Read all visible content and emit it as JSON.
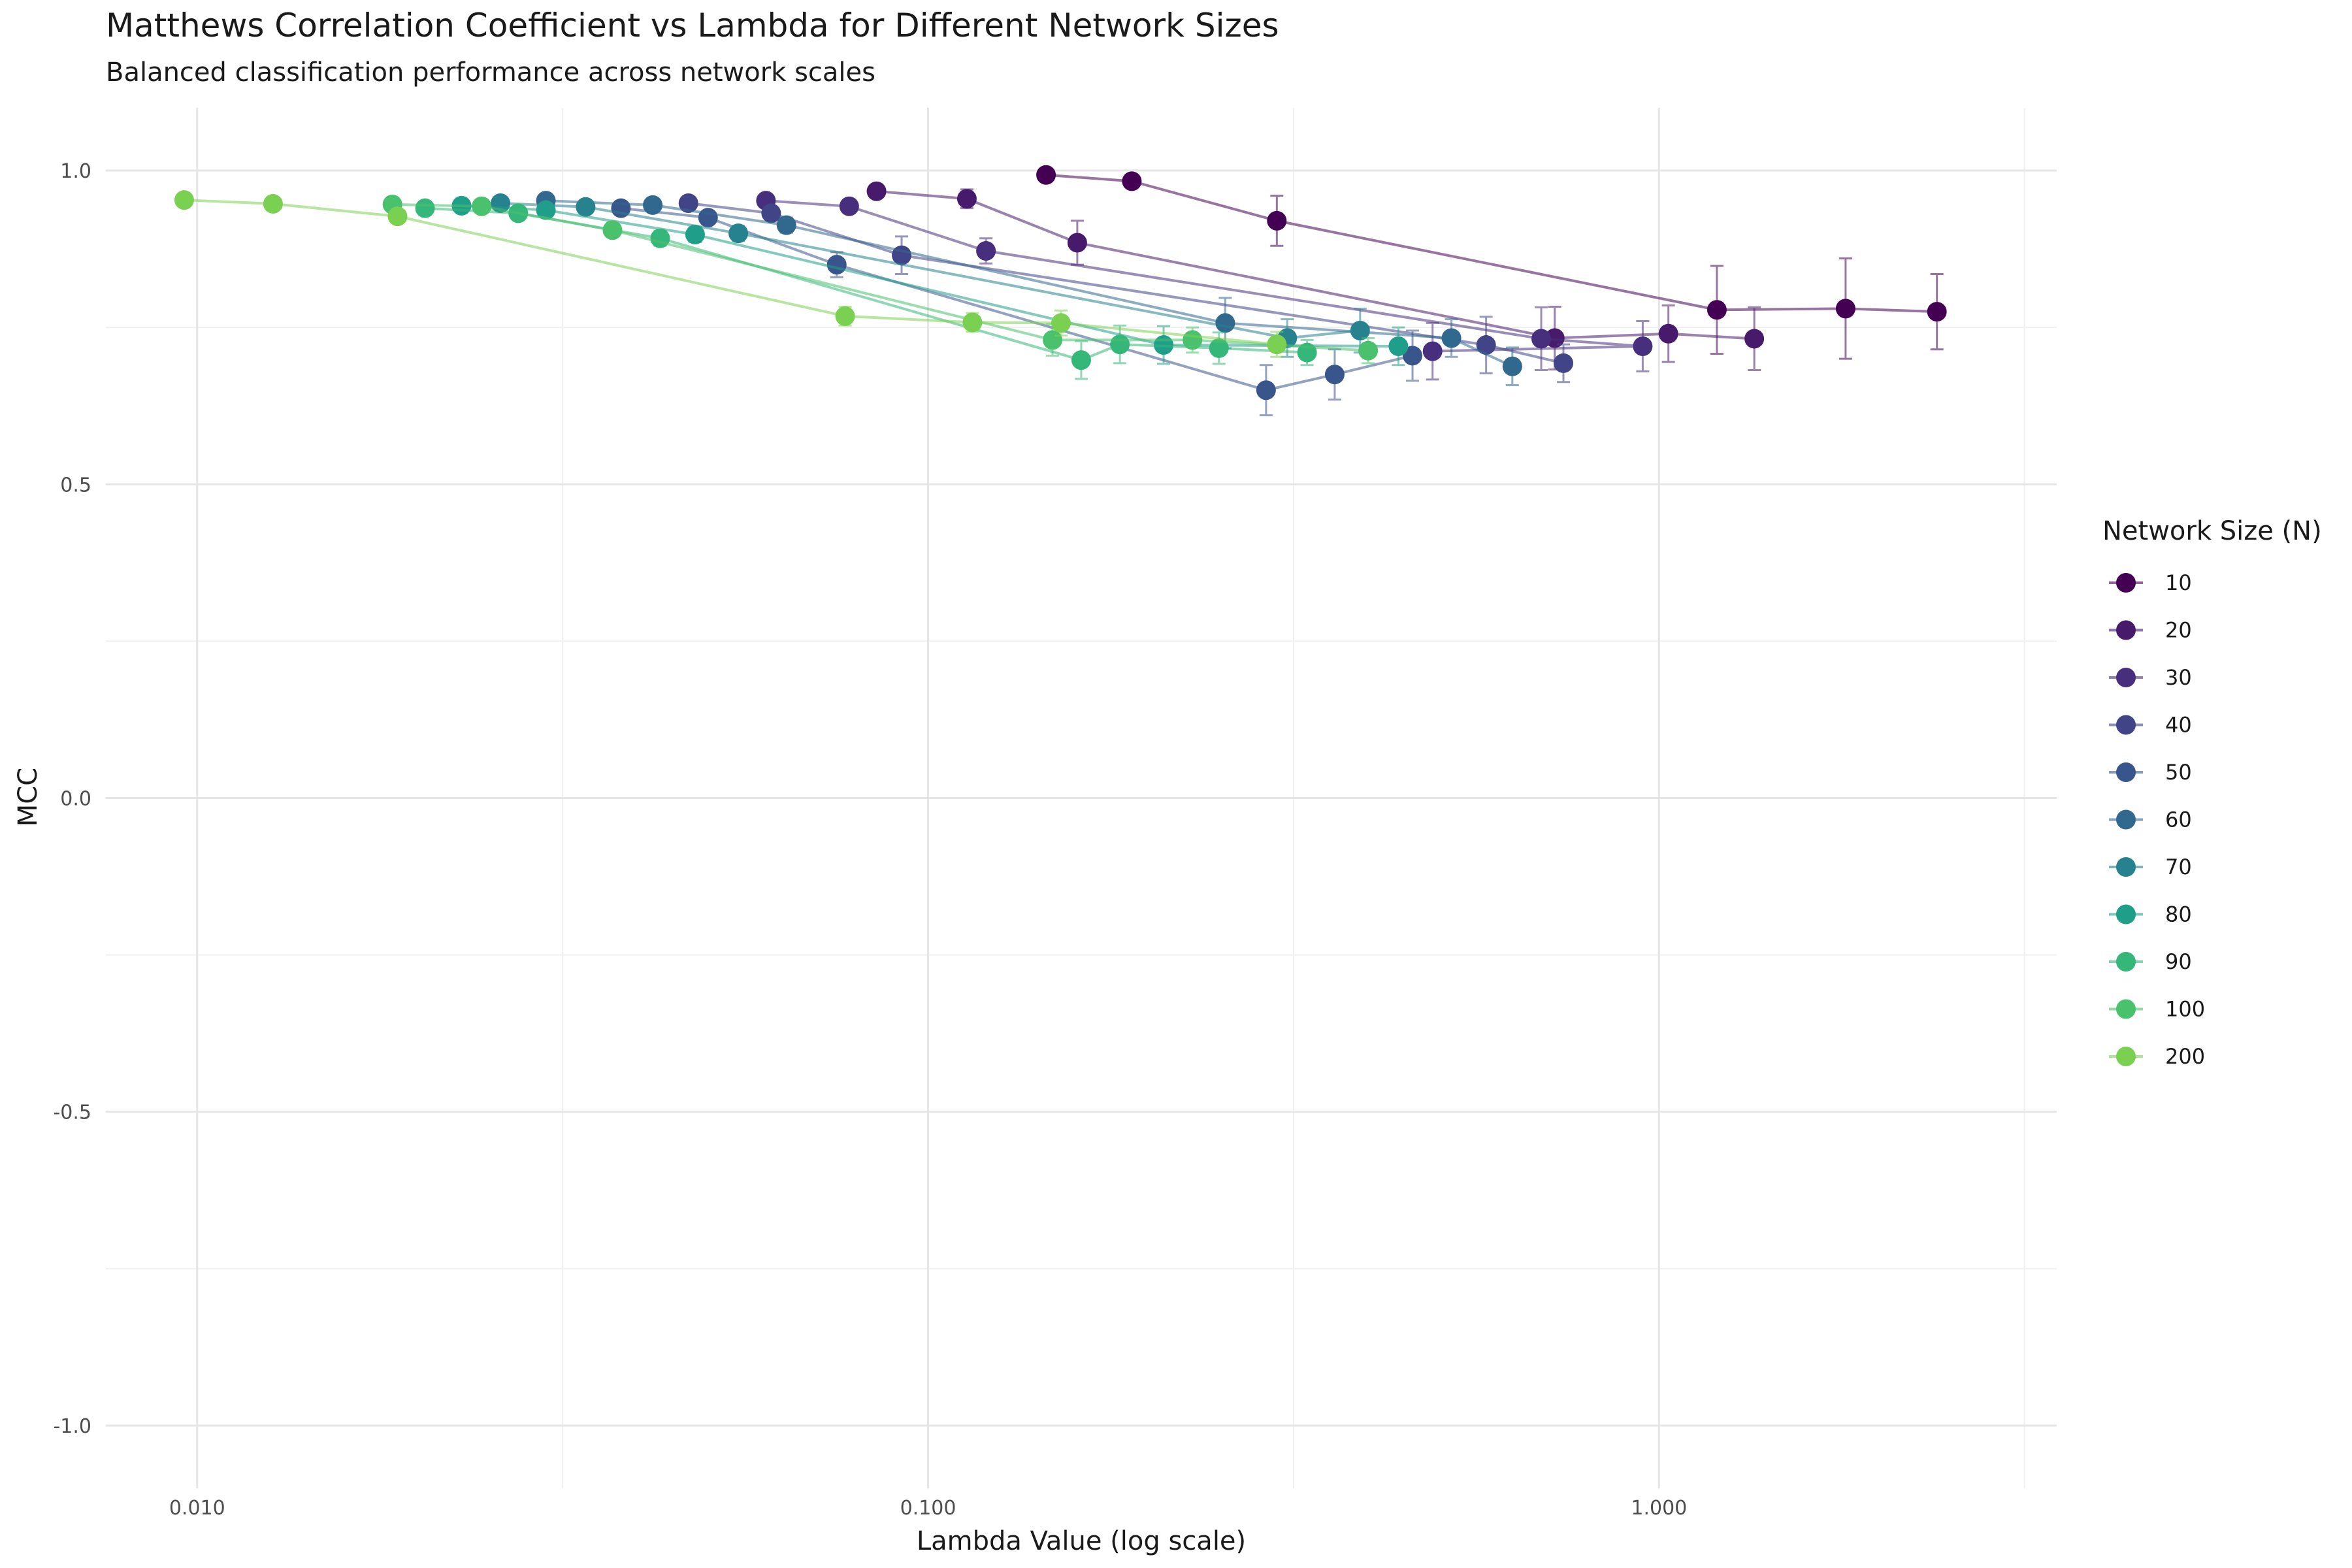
{
  "chart_data": {
    "type": "line",
    "title": "Matthews Correlation Coefficient vs Lambda for Different Network Sizes",
    "subtitle": "Balanced classification performance across network scales",
    "xlabel": "Lambda Value (log scale)",
    "ylabel": "MCC",
    "x_scale": "log",
    "xlim": [
      0.0075,
      3.5
    ],
    "ylim": [
      -1.1,
      1.1
    ],
    "x_ticks": [
      {
        "value": 0.01,
        "label": "0.010"
      },
      {
        "value": 0.1,
        "label": "0.100"
      },
      {
        "value": 1.0,
        "label": "1.000"
      }
    ],
    "y_ticks": [
      {
        "value": 1.0,
        "label": "1.0"
      },
      {
        "value": 0.5,
        "label": "0.5"
      },
      {
        "value": 0.0,
        "label": "0.0"
      },
      {
        "value": -0.5,
        "label": "-0.5"
      },
      {
        "value": -1.0,
        "label": "-1.0"
      }
    ],
    "grid": true,
    "legend": {
      "title": "Network Size (N)",
      "position": "right"
    },
    "series": [
      {
        "name": "10",
        "color": "#440154",
        "points": [
          {
            "x": 0.145,
            "y": 0.993,
            "err": 0.008
          },
          {
            "x": 0.19,
            "y": 0.983,
            "err": 0.01
          },
          {
            "x": 0.3,
            "y": 0.92,
            "err": 0.04
          },
          {
            "x": 1.2,
            "y": 0.778,
            "err": 0.07
          },
          {
            "x": 1.8,
            "y": 0.78,
            "err": 0.08
          },
          {
            "x": 2.4,
            "y": 0.775,
            "err": 0.06
          }
        ]
      },
      {
        "name": "20",
        "color": "#481a6c",
        "points": [
          {
            "x": 0.085,
            "y": 0.967,
            "err": 0.008
          },
          {
            "x": 0.113,
            "y": 0.955,
            "err": 0.015
          },
          {
            "x": 0.16,
            "y": 0.885,
            "err": 0.035
          },
          {
            "x": 0.72,
            "y": 0.733,
            "err": 0.05
          },
          {
            "x": 1.03,
            "y": 0.74,
            "err": 0.045
          },
          {
            "x": 1.35,
            "y": 0.732,
            "err": 0.05
          }
        ]
      },
      {
        "name": "30",
        "color": "#472f7d",
        "points": [
          {
            "x": 0.06,
            "y": 0.952,
            "err": 0.008
          },
          {
            "x": 0.078,
            "y": 0.943,
            "err": 0.01
          },
          {
            "x": 0.12,
            "y": 0.872,
            "err": 0.02
          },
          {
            "x": 0.69,
            "y": 0.732,
            "err": 0.05
          },
          {
            "x": 0.95,
            "y": 0.72,
            "err": 0.04
          },
          {
            "x": 0.49,
            "y": 0.712,
            "err": 0.045
          }
        ]
      },
      {
        "name": "40",
        "color": "#414487",
        "points": [
          {
            "x": 0.047,
            "y": 0.948,
            "err": 0.008
          },
          {
            "x": 0.061,
            "y": 0.932,
            "err": 0.01
          },
          {
            "x": 0.092,
            "y": 0.865,
            "err": 0.03
          },
          {
            "x": 0.58,
            "y": 0.722,
            "err": 0.045
          },
          {
            "x": 0.74,
            "y": 0.693,
            "err": 0.03
          }
        ]
      },
      {
        "name": "50",
        "color": "#39568c",
        "points": [
          {
            "x": 0.038,
            "y": 0.94,
            "err": 0.008
          },
          {
            "x": 0.05,
            "y": 0.925,
            "err": 0.01
          },
          {
            "x": 0.075,
            "y": 0.85,
            "err": 0.02
          },
          {
            "x": 0.29,
            "y": 0.65,
            "err": 0.04
          },
          {
            "x": 0.36,
            "y": 0.675,
            "err": 0.04
          },
          {
            "x": 0.46,
            "y": 0.705,
            "err": 0.04
          }
        ]
      },
      {
        "name": "60",
        "color": "#31688e",
        "points": [
          {
            "x": 0.03,
            "y": 0.952,
            "err": 0.008
          },
          {
            "x": 0.042,
            "y": 0.945,
            "err": 0.008
          },
          {
            "x": 0.064,
            "y": 0.913,
            "err": 0.012
          },
          {
            "x": 0.255,
            "y": 0.757,
            "err": 0.04
          },
          {
            "x": 0.52,
            "y": 0.733,
            "err": 0.03
          },
          {
            "x": 0.63,
            "y": 0.688,
            "err": 0.03
          }
        ]
      },
      {
        "name": "70",
        "color": "#26828e",
        "points": [
          {
            "x": 0.026,
            "y": 0.948,
            "err": 0.008
          },
          {
            "x": 0.034,
            "y": 0.942,
            "err": 0.008
          },
          {
            "x": 0.055,
            "y": 0.9,
            "err": 0.012
          },
          {
            "x": 0.31,
            "y": 0.733,
            "err": 0.03
          },
          {
            "x": 0.39,
            "y": 0.745,
            "err": 0.035
          }
        ]
      },
      {
        "name": "80",
        "color": "#1f9e89",
        "points": [
          {
            "x": 0.023,
            "y": 0.944,
            "err": 0.008
          },
          {
            "x": 0.03,
            "y": 0.937,
            "err": 0.008
          },
          {
            "x": 0.048,
            "y": 0.898,
            "err": 0.012
          },
          {
            "x": 0.21,
            "y": 0.722,
            "err": 0.03
          },
          {
            "x": 0.44,
            "y": 0.72,
            "err": 0.03
          }
        ]
      },
      {
        "name": "90",
        "color": "#35b779",
        "points": [
          {
            "x": 0.0205,
            "y": 0.94,
            "err": 0.008
          },
          {
            "x": 0.0275,
            "y": 0.932,
            "err": 0.008
          },
          {
            "x": 0.043,
            "y": 0.892,
            "err": 0.012
          },
          {
            "x": 0.162,
            "y": 0.698,
            "err": 0.03
          },
          {
            "x": 0.183,
            "y": 0.723,
            "err": 0.03
          },
          {
            "x": 0.25,
            "y": 0.717,
            "err": 0.025
          },
          {
            "x": 0.33,
            "y": 0.71,
            "err": 0.02
          }
        ]
      },
      {
        "name": "100",
        "color": "#4ac16d",
        "points": [
          {
            "x": 0.0185,
            "y": 0.946,
            "err": 0.008
          },
          {
            "x": 0.0245,
            "y": 0.943,
            "err": 0.008
          },
          {
            "x": 0.037,
            "y": 0.905,
            "err": 0.01
          },
          {
            "x": 0.148,
            "y": 0.73,
            "err": 0.025
          },
          {
            "x": 0.23,
            "y": 0.73,
            "err": 0.02
          },
          {
            "x": 0.4,
            "y": 0.713,
            "err": 0.02
          }
        ]
      },
      {
        "name": "200",
        "color": "#7ad151",
        "points": [
          {
            "x": 0.0096,
            "y": 0.953,
            "err": 0.008
          },
          {
            "x": 0.0127,
            "y": 0.947,
            "err": 0.008
          },
          {
            "x": 0.0188,
            "y": 0.927,
            "err": 0.01
          },
          {
            "x": 0.077,
            "y": 0.768,
            "err": 0.015
          },
          {
            "x": 0.115,
            "y": 0.758,
            "err": 0.015
          },
          {
            "x": 0.152,
            "y": 0.757,
            "err": 0.02
          },
          {
            "x": 0.3,
            "y": 0.723,
            "err": 0.02
          }
        ]
      }
    ]
  }
}
